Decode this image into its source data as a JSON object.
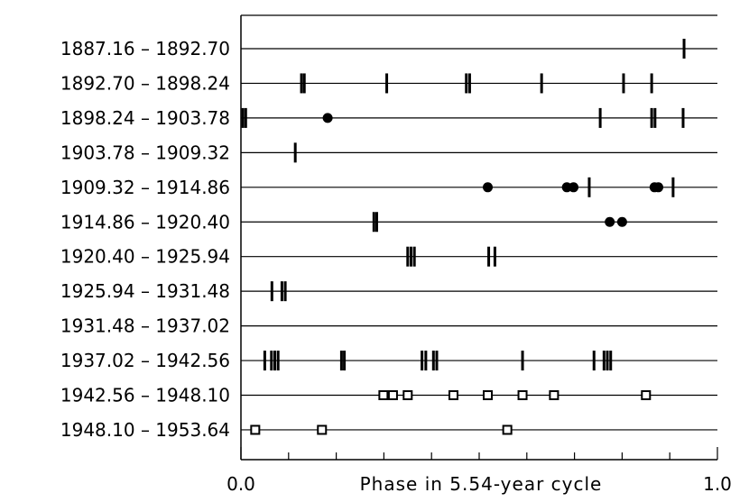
{
  "chart_data": {
    "type": "scatter",
    "title": "",
    "xlabel": "Phase in 5.54-year cycle",
    "ylabel": "",
    "xlim": [
      0.0,
      1.0
    ],
    "x_tick_labels": [
      "0.0",
      "1.0"
    ],
    "rows": [
      {
        "label": "1887.16 – 1892.70",
        "bars": [
          0.93
        ],
        "dots": [],
        "squares": []
      },
      {
        "label": "1892.70 – 1898.24",
        "bars": [
          0.127,
          0.133,
          0.306,
          0.473,
          0.48,
          0.631,
          0.803,
          0.862
        ],
        "dots": [],
        "squares": []
      },
      {
        "label": "1898.24 – 1903.78",
        "bars": [
          0.004,
          0.01,
          0.754,
          0.862,
          0.869,
          0.928
        ],
        "dots": [
          0.182
        ],
        "squares": []
      },
      {
        "label": "1903.78 – 1909.32",
        "bars": [
          0.114
        ],
        "dots": [],
        "squares": []
      },
      {
        "label": "1909.32 – 1914.86",
        "bars": [
          0.731,
          0.907
        ],
        "dots": [
          0.518,
          0.684,
          0.698,
          0.868,
          0.876
        ],
        "squares": []
      },
      {
        "label": "1914.86 – 1920.40",
        "bars": [
          0.279,
          0.285
        ],
        "dots": [
          0.774,
          0.8
        ],
        "squares": []
      },
      {
        "label": "1920.40 – 1925.94",
        "bars": [
          0.35,
          0.357,
          0.364,
          0.52,
          0.533
        ],
        "dots": [],
        "squares": []
      },
      {
        "label": "1925.94 – 1931.48",
        "bars": [
          0.065,
          0.086,
          0.093
        ],
        "dots": [],
        "squares": []
      },
      {
        "label": "1931.48 – 1937.02",
        "bars": [],
        "dots": [],
        "squares": []
      },
      {
        "label": "1937.02 – 1942.56",
        "bars": [
          0.05,
          0.064,
          0.071,
          0.078,
          0.211,
          0.217,
          0.38,
          0.388,
          0.404,
          0.411,
          0.591,
          0.741,
          0.762,
          0.769,
          0.776
        ],
        "dots": [],
        "squares": []
      },
      {
        "label": "1942.56 – 1948.10",
        "bars": [],
        "dots": [],
        "squares": [
          0.299,
          0.319,
          0.35,
          0.446,
          0.518,
          0.591,
          0.657,
          0.85
        ]
      },
      {
        "label": "1948.10 – 1953.64",
        "bars": [],
        "dots": [],
        "squares": [
          0.03,
          0.17,
          0.559
        ]
      }
    ]
  }
}
